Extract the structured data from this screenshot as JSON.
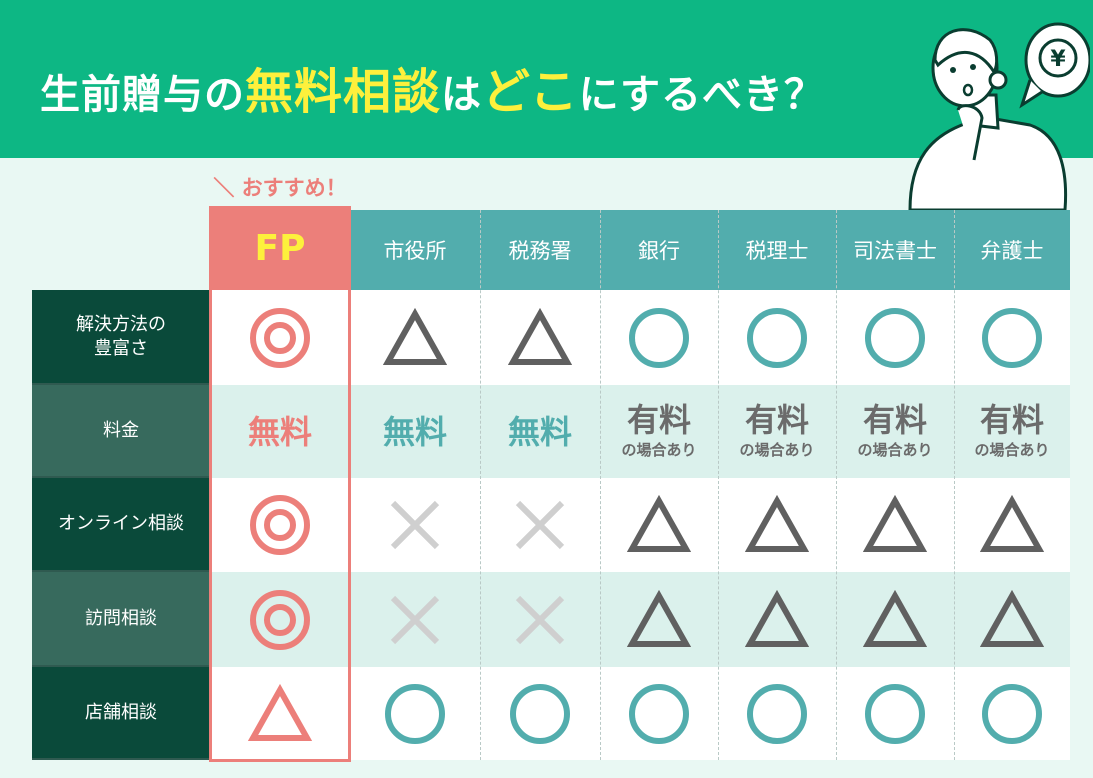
{
  "header": {
    "title_parts": [
      {
        "text": "生前贈与の",
        "highlight": false
      },
      {
        "text": "無料相談",
        "highlight": true
      },
      {
        "text": "は",
        "highlight": false
      },
      {
        "text": "どこ",
        "highlight": true
      },
      {
        "text": "にするべき？",
        "highlight": false
      }
    ],
    "illustration": "thinking-woman-with-yen-bubble-icon"
  },
  "recommend_label": "＼ おすすめ！ ／",
  "colors": {
    "header_green": "#0db784",
    "highlight_yellow": "#fdf03c",
    "fp_red": "#ec7f7a",
    "column_teal": "#52adad",
    "label_dark": "#0a4a3a",
    "label_mid": "#376a5d",
    "row_tint": "#dbf1ec",
    "mark_gray": "#606060",
    "cross_gray": "#cfcfcf"
  },
  "table": {
    "columns": [
      "FP",
      "市役所",
      "税務署",
      "銀行",
      "税理士",
      "司法書士",
      "弁護士"
    ],
    "rows": [
      {
        "label": "解決方法の\n豊富さ",
        "cells": [
          {
            "mark": "double-circle"
          },
          {
            "mark": "triangle"
          },
          {
            "mark": "triangle"
          },
          {
            "mark": "circle"
          },
          {
            "mark": "circle"
          },
          {
            "mark": "circle"
          },
          {
            "mark": "circle"
          }
        ]
      },
      {
        "label": "料金",
        "cells": [
          {
            "text": "無料"
          },
          {
            "text": "無料"
          },
          {
            "text": "無料"
          },
          {
            "text": "有料",
            "sub": "の場合あり"
          },
          {
            "text": "有料",
            "sub": "の場合あり"
          },
          {
            "text": "有料",
            "sub": "の場合あり"
          },
          {
            "text": "有料",
            "sub": "の場合あり"
          }
        ]
      },
      {
        "label": "オンライン相談",
        "cells": [
          {
            "mark": "double-circle"
          },
          {
            "mark": "cross"
          },
          {
            "mark": "cross"
          },
          {
            "mark": "triangle"
          },
          {
            "mark": "triangle"
          },
          {
            "mark": "triangle"
          },
          {
            "mark": "triangle"
          }
        ]
      },
      {
        "label": "訪問相談",
        "cells": [
          {
            "mark": "double-circle"
          },
          {
            "mark": "cross"
          },
          {
            "mark": "cross"
          },
          {
            "mark": "triangle"
          },
          {
            "mark": "triangle"
          },
          {
            "mark": "triangle"
          },
          {
            "mark": "triangle"
          }
        ]
      },
      {
        "label": "店舗相談",
        "cells": [
          {
            "mark": "triangle"
          },
          {
            "mark": "circle"
          },
          {
            "mark": "circle"
          },
          {
            "mark": "circle"
          },
          {
            "mark": "circle"
          },
          {
            "mark": "circle"
          },
          {
            "mark": "circle"
          }
        ]
      }
    ]
  }
}
